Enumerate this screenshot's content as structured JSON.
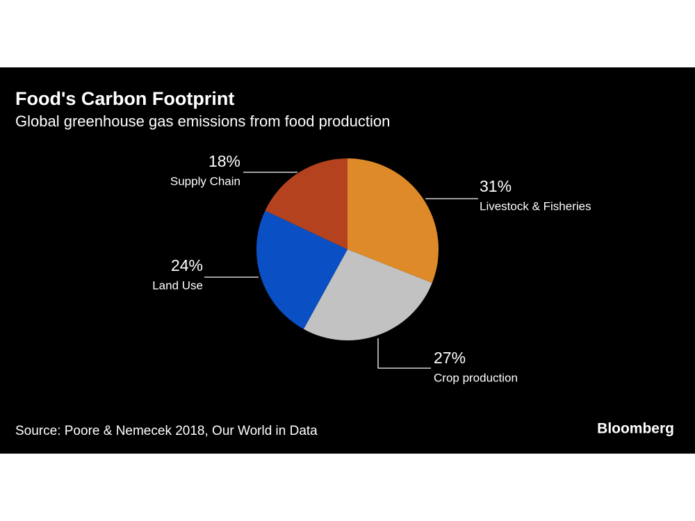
{
  "chart_data": {
    "type": "pie",
    "title": "Food's Carbon Footprint",
    "subtitle": "Global greenhouse gas emissions from food production",
    "categories": [
      "Livestock & Fisheries",
      "Crop production",
      "Land Use",
      "Supply Chain"
    ],
    "values": [
      31,
      27,
      24,
      18
    ],
    "value_labels": [
      "31%",
      "27%",
      "24%",
      "18%"
    ],
    "colors": [
      "#df8a29",
      "#c2c2c2",
      "#0a50c4",
      "#b4421f"
    ],
    "source": "Source: Poore & Nemecek 2018, Our World in Data",
    "brand": "Bloomberg"
  }
}
